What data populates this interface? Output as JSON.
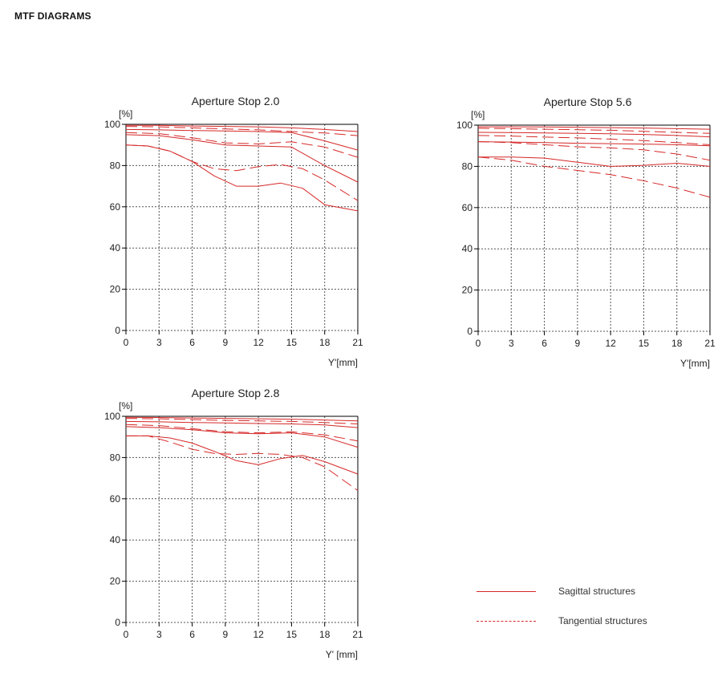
{
  "page": {
    "title": "MTF DIAGRAMS"
  },
  "colors": {
    "curve": "#d62828",
    "axis": "#000000",
    "grid": "#555555"
  },
  "legend": {
    "sagittal": {
      "label": "Sagittal structures",
      "style": "solid"
    },
    "tangential": {
      "label": "Tangential structures",
      "style": "dashed"
    }
  },
  "chart_data": [
    {
      "type": "line",
      "title": "Aperture Stop 2.0",
      "ylabel": "[%]",
      "xlabel": "Y'[mm]",
      "xlim": [
        0,
        21
      ],
      "ylim": [
        0,
        100
      ],
      "xticks": [
        0,
        3,
        6,
        9,
        12,
        15,
        18,
        21
      ],
      "yticks": [
        0,
        20,
        40,
        60,
        80,
        100
      ],
      "grid": true,
      "series": [
        {
          "style": "solid",
          "x": [
            0,
            3,
            6,
            9,
            12,
            15,
            18,
            21
          ],
          "y": [
            99.5,
            99.5,
            99.2,
            99,
            98.8,
            98.3,
            97.5,
            96.5
          ]
        },
        {
          "style": "dashed",
          "x": [
            0,
            3,
            6,
            9,
            12,
            15,
            18,
            21
          ],
          "y": [
            99,
            98.8,
            98.3,
            97.8,
            97.3,
            96.5,
            95.8,
            94.5
          ]
        },
        {
          "style": "solid",
          "x": [
            0,
            3,
            6,
            9,
            12,
            15,
            18,
            21
          ],
          "y": [
            97.5,
            97.3,
            97,
            96.8,
            96.5,
            96,
            92,
            87.5
          ]
        },
        {
          "style": "dashed",
          "x": [
            0,
            3,
            6,
            9,
            12,
            15,
            18,
            21
          ],
          "y": [
            96,
            95.5,
            93.5,
            91,
            90.5,
            91.5,
            89,
            84
          ]
        },
        {
          "style": "solid",
          "x": [
            0,
            3,
            6,
            9,
            12,
            15,
            18,
            21
          ],
          "y": [
            95,
            94.5,
            92.5,
            90,
            89.5,
            89,
            80,
            72
          ]
        },
        {
          "style": "dashed",
          "x": [
            0,
            2,
            4,
            6,
            8,
            10,
            12,
            14,
            16,
            18,
            21
          ],
          "y": [
            90,
            89.5,
            87,
            82,
            78.5,
            77.5,
            79.5,
            80.5,
            78.5,
            73,
            63
          ]
        },
        {
          "style": "solid",
          "x": [
            0,
            2,
            4,
            6,
            8,
            10,
            12,
            14,
            16,
            18,
            21
          ],
          "y": [
            90,
            89.5,
            87,
            82,
            75,
            70,
            70,
            71.5,
            69,
            61,
            58
          ]
        }
      ]
    },
    {
      "type": "line",
      "title": "Aperture Stop 5.6",
      "ylabel": "[%]",
      "xlabel": "Y'[mm]",
      "xlim": [
        0,
        21
      ],
      "ylim": [
        0,
        100
      ],
      "xticks": [
        0,
        3,
        6,
        9,
        12,
        15,
        18,
        21
      ],
      "yticks": [
        0,
        20,
        40,
        60,
        80,
        100
      ],
      "grid": true,
      "series": [
        {
          "style": "solid",
          "x": [
            0,
            3,
            6,
            9,
            12,
            15,
            18,
            21
          ],
          "y": [
            99.2,
            99.2,
            99.1,
            99,
            98.8,
            98.6,
            98.3,
            98
          ]
        },
        {
          "style": "dashed",
          "x": [
            0,
            3,
            6,
            9,
            12,
            15,
            18,
            21
          ],
          "y": [
            98.5,
            98.3,
            98,
            97.8,
            97.5,
            97,
            96.5,
            96
          ]
        },
        {
          "style": "solid",
          "x": [
            0,
            3,
            6,
            9,
            12,
            15,
            18,
            21
          ],
          "y": [
            96.5,
            96.4,
            96.2,
            96,
            95.8,
            95.5,
            95,
            94.3
          ]
        },
        {
          "style": "dashed",
          "x": [
            0,
            3,
            6,
            9,
            12,
            15,
            18,
            21
          ],
          "y": [
            95,
            94.7,
            94.2,
            93.8,
            93.2,
            92.5,
            91.5,
            90.5
          ]
        },
        {
          "style": "solid",
          "x": [
            0,
            3,
            6,
            9,
            12,
            15,
            18,
            21
          ],
          "y": [
            92,
            91.8,
            91.5,
            91.2,
            91,
            90.8,
            90.5,
            90
          ]
        },
        {
          "style": "dashed",
          "x": [
            0,
            3,
            6,
            9,
            12,
            15,
            18,
            21
          ],
          "y": [
            92,
            91.5,
            90.5,
            89.5,
            89,
            88,
            86,
            83
          ]
        },
        {
          "style": "solid",
          "x": [
            0,
            3,
            6,
            9,
            12,
            15,
            18,
            21
          ],
          "y": [
            84.5,
            84.5,
            84,
            82,
            80,
            80.5,
            81.5,
            80
          ]
        },
        {
          "style": "dashed",
          "x": [
            0,
            3,
            6,
            9,
            12,
            15,
            18,
            21
          ],
          "y": [
            84.5,
            83,
            80,
            78,
            76,
            73,
            69.5,
            65
          ]
        }
      ]
    },
    {
      "type": "line",
      "title": "Aperture Stop 2.8",
      "ylabel": "[%]",
      "xlabel": "Y' [mm]",
      "xlim": [
        0,
        21
      ],
      "ylim": [
        0,
        100
      ],
      "xticks": [
        0,
        3,
        6,
        9,
        12,
        15,
        18,
        21
      ],
      "yticks": [
        0,
        20,
        40,
        60,
        80,
        100
      ],
      "grid": true,
      "series": [
        {
          "style": "solid",
          "x": [
            0,
            3,
            6,
            9,
            12,
            15,
            18,
            21
          ],
          "y": [
            99.5,
            99.4,
            99.2,
            99,
            98.8,
            98.6,
            98.2,
            97.8
          ]
        },
        {
          "style": "dashed",
          "x": [
            0,
            3,
            6,
            9,
            12,
            15,
            18,
            21
          ],
          "y": [
            99,
            98.8,
            98.4,
            98,
            97.8,
            97.5,
            97,
            96.3
          ]
        },
        {
          "style": "solid",
          "x": [
            0,
            3,
            6,
            9,
            12,
            15,
            18,
            21
          ],
          "y": [
            97.5,
            97.3,
            97,
            96.8,
            96.5,
            96.3,
            95.8,
            94.5
          ]
        },
        {
          "style": "dashed",
          "x": [
            0,
            3,
            6,
            9,
            12,
            15,
            18,
            21
          ],
          "y": [
            96,
            95.5,
            94,
            92.5,
            92,
            92.5,
            91,
            88
          ]
        },
        {
          "style": "solid",
          "x": [
            0,
            3,
            6,
            9,
            12,
            15,
            18,
            21
          ],
          "y": [
            95,
            94.5,
            93.5,
            92,
            91.5,
            92,
            90,
            85
          ]
        },
        {
          "style": "dashed",
          "x": [
            0,
            2,
            4,
            6,
            8,
            10,
            12,
            14,
            16,
            18,
            21
          ],
          "y": [
            90.5,
            90.5,
            87.5,
            84,
            82,
            81.5,
            82,
            81.5,
            80,
            75.5,
            64
          ]
        },
        {
          "style": "solid",
          "x": [
            0,
            2,
            4,
            6,
            8,
            10,
            12,
            14,
            16,
            18,
            21
          ],
          "y": [
            90.5,
            90.5,
            89.5,
            87,
            83,
            78.5,
            76.5,
            79.5,
            81,
            78,
            72
          ]
        }
      ]
    }
  ]
}
